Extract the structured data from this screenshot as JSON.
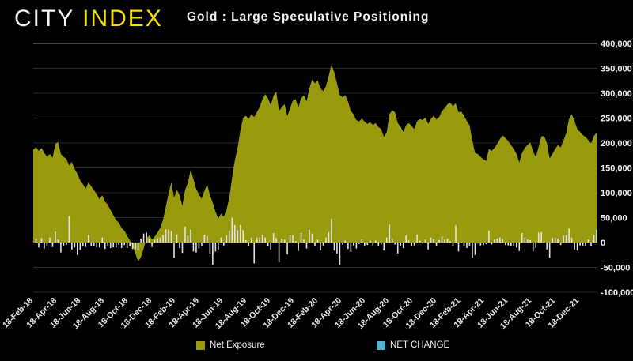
{
  "header": {
    "logo_part1": "CITY",
    "logo_part2": "INDEX",
    "title": "Gold : Large Speculative Positioning"
  },
  "legend": {
    "items": [
      {
        "label": "Net Exposure",
        "color": "#9a9a0f"
      },
      {
        "label": "NET CHANGE",
        "color": "#55b0cf"
      }
    ]
  },
  "colors": {
    "background": "#000000",
    "area": "#9a9a0f",
    "bars": "#e3e3e3",
    "net_change_legend": "#55b0cf",
    "logo_yellow": "#f5e003",
    "text": "#f2f2f2",
    "gridline": "rgba(255,255,255,0.16)",
    "gridline_top": "rgba(255,255,255,0.5)"
  },
  "chart_data": {
    "type": "area",
    "title": "Gold : Large Speculative Positioning",
    "xlabel": "",
    "ylabel": "",
    "grid": true,
    "legend_position": "bottom",
    "y_min": -100000,
    "y_max": 400000,
    "y_step": 50000,
    "y_tick_labels": [
      "400,000",
      "350,000",
      "300,000",
      "250,000",
      "200,000",
      "150,000",
      "100,000",
      "50,000",
      "0",
      "-50,000",
      "-100,000"
    ],
    "x_tick_labels": [
      "18-Feb-18",
      "18-Apr-18",
      "18-Jun-18",
      "18-Aug-18",
      "18-Oct-18",
      "18-Dec-18",
      "18-Feb-19",
      "18-Apr-19",
      "18-Jun-19",
      "18-Aug-19",
      "18-Oct-19",
      "18-Dec-19",
      "18-Feb-20",
      "18-Apr-20",
      "18-Jun-20",
      "18-Aug-20",
      "18-Oct-20",
      "18-Dec-20",
      "18-Feb-21",
      "18-Apr-21",
      "18-Jun-21",
      "18-Aug-21",
      "18-Oct-21",
      "18-Dec-21"
    ],
    "x_frequency": "weekly",
    "series": [
      {
        "name": "Net Exposure",
        "render": "area",
        "color": "#9a9a0f",
        "values": [
          186000,
          192000,
          184000,
          190000,
          180000,
          172000,
          178000,
          170000,
          198000,
          202000,
          178000,
          172000,
          168000,
          155000,
          162000,
          148000,
          138000,
          125000,
          117000,
          108000,
          121000,
          113000,
          105000,
          97000,
          87000,
          95000,
          82000,
          76000,
          65000,
          55000,
          45000,
          40000,
          29000,
          24000,
          13000,
          5000,
          -8000,
          -22000,
          -38000,
          -30000,
          -12000,
          8000,
          15000,
          6000,
          12000,
          20000,
          30000,
          45000,
          72000,
          98000,
          121000,
          90000,
          106000,
          95000,
          74000,
          106000,
          120000,
          146000,
          128000,
          108000,
          96000,
          88000,
          104000,
          117000,
          95000,
          80000,
          62000,
          48000,
          58000,
          52000,
          66000,
          90000,
          130000,
          165000,
          190000,
          225000,
          250000,
          255000,
          248000,
          258000,
          252000,
          262000,
          272000,
          288000,
          298000,
          290000,
          276000,
          295000,
          304000,
          264000,
          272000,
          278000,
          254000,
          270000,
          285000,
          288000,
          271000,
          290000,
          296000,
          284000,
          310000,
          328000,
          320000,
          326000,
          310000,
          304000,
          314000,
          335000,
          358000,
          342000,
          320000,
          296000,
          292000,
          296000,
          283000,
          264000,
          258000,
          246000,
          243000,
          249000,
          243000,
          238000,
          242000,
          236000,
          240000,
          232000,
          228000,
          212000,
          222000,
          258000,
          266000,
          262000,
          240000,
          233000,
          222000,
          236000,
          240000,
          234000,
          228000,
          244000,
          248000,
          246000,
          252000,
          238000,
          248000,
          255000,
          247000,
          252000,
          264000,
          270000,
          278000,
          281000,
          274000,
          280000,
          262000,
          263000,
          255000,
          244000,
          236000,
          205000,
          180000,
          178000,
          172000,
          167000,
          164000,
          188000,
          184000,
          190000,
          198000,
          208000,
          215000,
          210000,
          204000,
          196000,
          188000,
          178000,
          161000,
          180000,
          190000,
          196000,
          201000,
          183000,
          172000,
          192000,
          213000,
          214000,
          200000,
          169000,
          178000,
          188000,
          196000,
          191000,
          205000,
          220000,
          248000,
          258000,
          244000,
          228000,
          222000,
          216000,
          212000,
          206000,
          199000,
          214000,
          221000
        ]
      },
      {
        "name": "NET CHANGE",
        "render": "bar",
        "color": "#e3e3e3",
        "legend_color": "#55b0cf",
        "values": [
          0,
          8000,
          -10000,
          9000,
          -12000,
          -8000,
          10000,
          -9000,
          22000,
          6000,
          -20000,
          -8000,
          -5000,
          53000,
          -14000,
          -10000,
          -25000,
          -15000,
          -8000,
          -9000,
          15000,
          -8000,
          -8000,
          -10000,
          -10000,
          10000,
          -13000,
          -6000,
          -11000,
          -10000,
          -10000,
          -5000,
          -11000,
          -5000,
          -11000,
          -8000,
          -13000,
          -14000,
          -16000,
          8000,
          18000,
          20000,
          7000,
          -9000,
          6000,
          8000,
          10000,
          15000,
          27000,
          26000,
          23000,
          -31000,
          16000,
          -11000,
          -21000,
          32000,
          14000,
          26000,
          -18000,
          -20000,
          -12000,
          -8000,
          16000,
          13000,
          -22000,
          -45000,
          -18000,
          -14000,
          10000,
          -6000,
          14000,
          24000,
          50000,
          35000,
          25000,
          35000,
          25000,
          5000,
          -7000,
          10000,
          -42000,
          10000,
          10000,
          16000,
          10000,
          -8000,
          -14000,
          19000,
          9000,
          -40000,
          8000,
          6000,
          -24000,
          16000,
          15000,
          3000,
          -17000,
          19000,
          6000,
          -12000,
          26000,
          18000,
          -8000,
          6000,
          -16000,
          -6000,
          10000,
          21000,
          48000,
          -16000,
          -22000,
          -45000,
          -4000,
          4000,
          -13000,
          -19000,
          -6000,
          -12000,
          -3000,
          6000,
          -6000,
          -5000,
          4000,
          -6000,
          4000,
          -8000,
          -4000,
          -16000,
          10000,
          36000,
          8000,
          -4000,
          -22000,
          -7000,
          -11000,
          14000,
          4000,
          -6000,
          -6000,
          16000,
          4000,
          -2000,
          6000,
          -14000,
          10000,
          7000,
          -8000,
          5000,
          12000,
          6000,
          8000,
          3000,
          -7000,
          35000,
          -18000,
          1000,
          -8000,
          -11000,
          -8000,
          -31000,
          -25000,
          -2000,
          -6000,
          -5000,
          -3000,
          24000,
          -4000,
          6000,
          8000,
          10000,
          7000,
          -5000,
          -6000,
          -8000,
          -8000,
          -10000,
          -17000,
          19000,
          10000,
          6000,
          5000,
          -18000,
          -11000,
          20000,
          21000,
          1000,
          -14000,
          -31000,
          9000,
          10000,
          8000,
          -5000,
          14000,
          15000,
          28000,
          10000,
          -14000,
          -16000,
          -6000,
          -6000,
          -7000,
          6000,
          -7000,
          15000,
          25000
        ]
      }
    ]
  }
}
